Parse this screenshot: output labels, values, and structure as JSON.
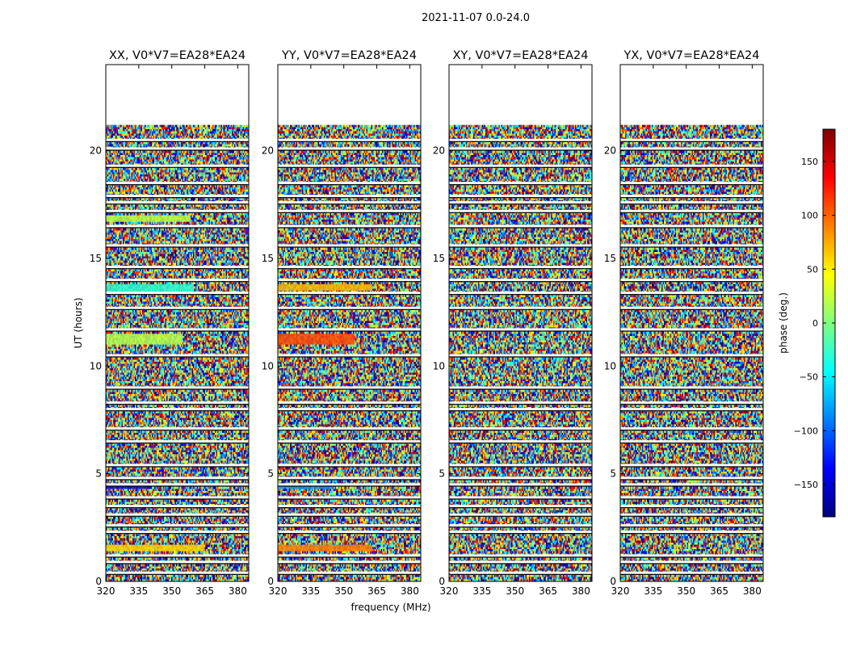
{
  "suptitle": "2021-11-07 0.0-24.0",
  "chart_data": {
    "type": "heatmap",
    "title": "2021-11-07 0.0-24.0",
    "xlabel": "frequency (MHz)",
    "ylabel": "UT (hours)",
    "xlim": [
      320,
      385
    ],
    "ylim": [
      0,
      24
    ],
    "x_ticks": [
      320,
      335,
      350,
      365,
      380
    ],
    "y_ticks": [
      0,
      5,
      10,
      15,
      20
    ],
    "data_extent_hours": [
      0,
      21.2
    ],
    "panels": [
      {
        "title": "XX, V0*V7=EA28*EA24"
      },
      {
        "title": "YY, V0*V7=EA28*EA24"
      },
      {
        "title": "XY, V0*V7=EA28*EA24"
      },
      {
        "title": "YX, V0*V7=EA28*EA24"
      }
    ],
    "colorbar": {
      "label": "phase (deg.)",
      "colormap": "jet",
      "range": [
        -180,
        180
      ],
      "ticks": [
        -150,
        -100,
        -50,
        0,
        50,
        100,
        150
      ],
      "tick_labels": [
        "−150",
        "−100",
        "−50",
        "0",
        "50",
        "100",
        "150"
      ]
    },
    "flagged_gaps_hours": [
      0.4,
      0.9,
      1.2,
      2.3,
      2.6,
      3.1,
      3.5,
      3.9,
      4.5,
      4.8,
      5.4,
      6.5,
      7.1,
      8.0,
      8.3,
      9.0,
      10.5,
      11.7,
      12.7,
      13.4,
      14.0,
      14.6,
      15.6,
      16.5,
      17.2,
      17.6,
      17.9,
      18.5,
      19.3,
      20.1,
      20.5
    ],
    "coherent_bands": [
      {
        "panel": 0,
        "hours": [
          1.4,
          1.7
        ],
        "phase": 60,
        "freq_to": 365
      },
      {
        "panel": 1,
        "hours": [
          1.4,
          1.7
        ],
        "phase": 90,
        "freq_to": 363
      },
      {
        "panel": 0,
        "hours": [
          4.3,
          4.5
        ],
        "phase": -140,
        "freq_to": 340
      },
      {
        "panel": 1,
        "hours": [
          4.3,
          4.5
        ],
        "phase": -80,
        "freq_to": 345
      },
      {
        "panel": 0,
        "hours": [
          11.0,
          11.5
        ],
        "phase": 20,
        "freq_to": 355
      },
      {
        "panel": 1,
        "hours": [
          11.0,
          11.5
        ],
        "phase": 110,
        "freq_to": 355
      },
      {
        "panel": 0,
        "hours": [
          13.4,
          13.8
        ],
        "phase": -30,
        "freq_to": 360
      },
      {
        "panel": 1,
        "hours": [
          13.5,
          13.8
        ],
        "phase": 70,
        "freq_to": 363
      },
      {
        "panel": 0,
        "hours": [
          16.7,
          17.0
        ],
        "phase": 20,
        "freq_to": 358
      }
    ]
  }
}
